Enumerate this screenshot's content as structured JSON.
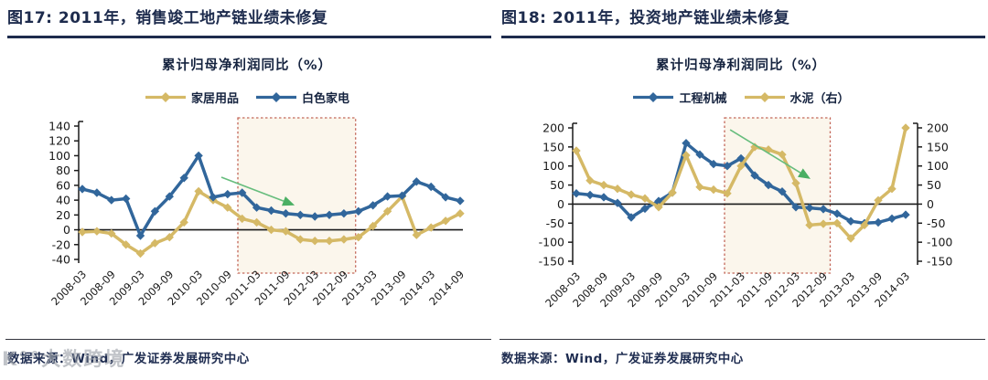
{
  "page": {
    "watermark": "K°°大数跨境"
  },
  "colors": {
    "accent_navy": "#1d2b4d",
    "series_blue": "#31669b",
    "series_yellow": "#d5b966",
    "highlight_border": "#c4685a",
    "highlight_fill": "#faf4e7",
    "arrow_green": "#4aaf63"
  },
  "figures": [
    {
      "figure_title": "图17: 2011年，销售竣工地产链业绩未修复",
      "source": "数据来源：Wind，广发证券发展研究中心",
      "chart_data": {
        "type": "line",
        "title": "累计归母净利润同比（%）",
        "legend_position": "top",
        "grid": false,
        "x": [
          "2008-03",
          "2008-06",
          "2008-09",
          "2008-12",
          "2009-03",
          "2009-06",
          "2009-09",
          "2009-12",
          "2010-03",
          "2010-06",
          "2010-09",
          "2010-12",
          "2011-03",
          "2011-06",
          "2011-09",
          "2011-12",
          "2012-03",
          "2012-06",
          "2012-09",
          "2012-12",
          "2013-03",
          "2013-06",
          "2013-09",
          "2013-12",
          "2014-03",
          "2014-06",
          "2014-09"
        ],
        "x_tick_labels": [
          "2008-03",
          "2008-09",
          "2009-03",
          "2009-09",
          "2010-03",
          "2010-09",
          "2011-03",
          "2011-09",
          "2012-03",
          "2012-09",
          "2013-03",
          "2013-09",
          "2014-03",
          "2014-09"
        ],
        "tick_every": 2,
        "ylim": [
          -40,
          140
        ],
        "y_ticks": [
          140,
          120,
          100,
          80,
          60,
          40,
          20,
          0,
          -20,
          -40
        ],
        "right_axis": false,
        "series": [
          {
            "name": "家居用品",
            "color": "#d5b966",
            "marker": "diamond",
            "axis": "left",
            "values": [
              -3,
              -2,
              -5,
              -20,
              -32,
              -18,
              -10,
              10,
              52,
              40,
              30,
              15,
              10,
              0,
              -2,
              -13,
              -15,
              -15,
              -13,
              -10,
              5,
              25,
              45,
              -7,
              3,
              12,
              22
            ]
          },
          {
            "name": "白色家电",
            "color": "#31669b",
            "marker": "diamond",
            "axis": "left",
            "values": [
              55,
              50,
              40,
              42,
              -8,
              25,
              45,
              70,
              100,
              44,
              48,
              50,
              30,
              26,
              22,
              20,
              18,
              20,
              22,
              25,
              33,
              45,
              46,
              65,
              58,
              44,
              39
            ]
          }
        ],
        "highlight_box": {
          "from_index": 10.7,
          "to_index": 18.8
        },
        "arrow": {
          "from": [
            0.368,
            71
          ],
          "to": [
            0.562,
            33
          ]
        }
      }
    },
    {
      "figure_title": "图18: 2011年，投资地产链业绩未修复",
      "source": "数据来源：Wind，广发证券发展研究中心",
      "chart_data": {
        "type": "line",
        "title": "累计归母净利润同比（%）",
        "legend_position": "top",
        "grid": false,
        "x": [
          "2008-03",
          "2008-06",
          "2008-09",
          "2008-12",
          "2009-03",
          "2009-06",
          "2009-09",
          "2009-12",
          "2010-03",
          "2010-06",
          "2010-09",
          "2010-12",
          "2011-03",
          "2011-06",
          "2011-09",
          "2011-12",
          "2012-03",
          "2012-06",
          "2012-09",
          "2012-12",
          "2013-03",
          "2013-06",
          "2013-09",
          "2013-12",
          "2014-03"
        ],
        "x_tick_labels": [
          "2008-03",
          "2008-09",
          "2009-03",
          "2009-09",
          "2010-03",
          "2010-09",
          "2011-03",
          "2011-09",
          "2012-03",
          "2012-09",
          "2013-03",
          "2013-09",
          "2014-03"
        ],
        "tick_every": 2,
        "ylim": [
          -150,
          200
        ],
        "y_ticks": [
          200,
          150,
          100,
          50,
          0,
          -50,
          -100,
          -150
        ],
        "right_axis": true,
        "ylim_right": [
          -150,
          200
        ],
        "y_ticks_right": [
          200,
          150,
          100,
          50,
          0,
          -50,
          -100,
          -150
        ],
        "series": [
          {
            "name": "工程机械",
            "color": "#31669b",
            "marker": "diamond",
            "axis": "left",
            "values": [
              28,
              24,
              18,
              3,
              -35,
              -12,
              8,
              30,
              160,
              130,
              105,
              100,
              120,
              75,
              50,
              33,
              -8,
              -10,
              -13,
              -25,
              -45,
              -50,
              -48,
              -38,
              -28
            ]
          },
          {
            "name": "水泥（右）",
            "color": "#d5b966",
            "marker": "diamond",
            "axis": "right",
            "values": [
              140,
              62,
              50,
              40,
              25,
              15,
              -8,
              30,
              128,
              45,
              38,
              28,
              100,
              150,
              143,
              130,
              55,
              -55,
              -52,
              -50,
              -90,
              -55,
              10,
              40,
              200
            ]
          }
        ],
        "highlight_box": {
          "from_index": 10.8,
          "to_index": 18.5
        },
        "arrow": {
          "from": [
            0.467,
            195
          ],
          "to": [
            0.711,
            66
          ]
        }
      }
    }
  ]
}
